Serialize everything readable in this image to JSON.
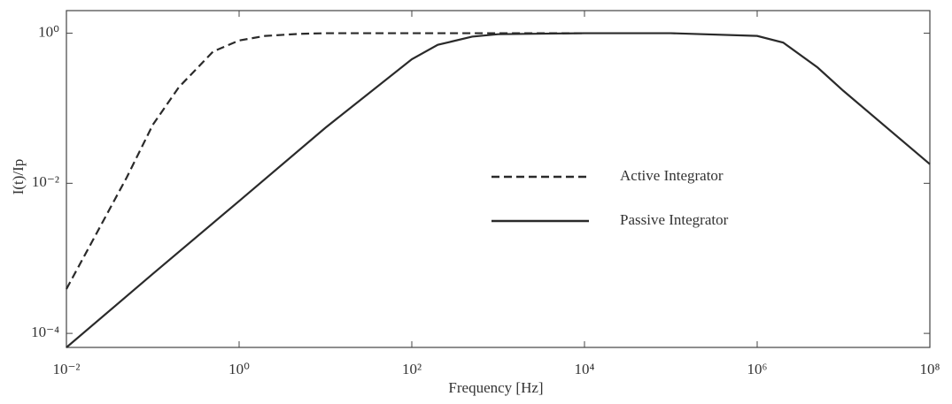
{
  "chart_data": {
    "type": "line",
    "x_label": "Frequency [Hz]",
    "y_label": "I(t)/Ip",
    "x_log": true,
    "y_log": true,
    "xlim": [
      0.01,
      100000000
    ],
    "ylim": [
      6.5e-05,
      2
    ],
    "xticks": [
      {
        "value": 0.01,
        "label": "10⁻²"
      },
      {
        "value": 1,
        "label": "10⁰"
      },
      {
        "value": 100,
        "label": "10²"
      },
      {
        "value": 10000,
        "label": "10⁴"
      },
      {
        "value": 1000000,
        "label": "10⁶"
      },
      {
        "value": 100000000,
        "label": "10⁸"
      }
    ],
    "yticks": [
      {
        "value": 0.0001,
        "label": "10⁻⁴"
      },
      {
        "value": 0.01,
        "label": "10⁻²"
      },
      {
        "value": 1,
        "label": "10⁰"
      }
    ],
    "grid": false,
    "legend": "center",
    "series": [
      {
        "name": "Active Integrator",
        "color": "#2a2a2a",
        "style": "dashed",
        "x": [
          0.01,
          0.02,
          0.05,
          0.1,
          0.2,
          0.5,
          1,
          2,
          5,
          10,
          100,
          1000,
          10000
        ],
        "values": [
          0.00039,
          0.0017,
          0.012,
          0.06,
          0.19,
          0.57,
          0.8,
          0.92,
          0.98,
          1,
          1,
          1,
          1
        ]
      },
      {
        "name": "Passive Integrator",
        "color": "#2a2a2a",
        "style": "solid",
        "x": [
          0.01,
          0.1,
          1,
          10,
          100,
          200,
          500,
          1000,
          10000,
          100000,
          1000000,
          2000000,
          5000000,
          10000000,
          100000000
        ],
        "values": [
          6.5e-05,
          0.00062,
          0.0058,
          0.055,
          0.45,
          0.7,
          0.9,
          0.97,
          1,
          1,
          0.92,
          0.75,
          0.35,
          0.17,
          0.018
        ]
      }
    ]
  }
}
